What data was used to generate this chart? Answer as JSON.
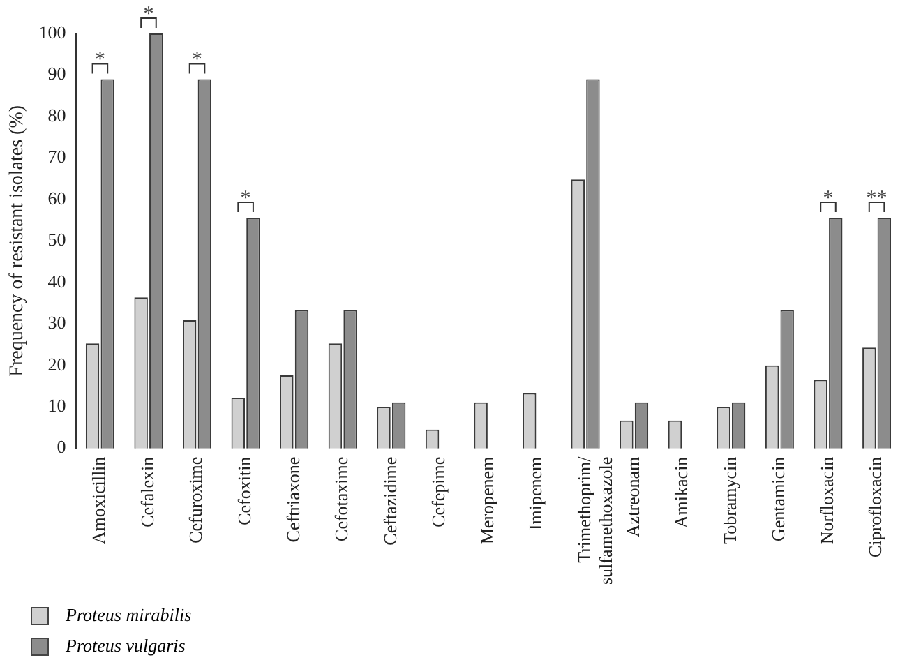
{
  "chart_data": {
    "type": "bar",
    "ylabel": "Frequency of resistant isolates (%)",
    "categories": [
      "Amoxicillin",
      "Cefalexin",
      "Cefuroxime",
      "Cefoxitin",
      "Ceftriaxone",
      "Cefotaxime",
      "Ceftazidime",
      "Cefepime",
      "Meropenem",
      "Imipenem",
      "Trimethoprim/sulfamethoxazole",
      "Aztreonam",
      "Amikacin",
      "Tobramycin",
      "Gentamicin",
      "Norfloxacin",
      "Ciprofloxacin"
    ],
    "series": [
      {
        "name": "Proteus mirabilis",
        "color": "#d0d0d0",
        "values": [
          25.3,
          36.4,
          30.9,
          12.2,
          17.6,
          25.3,
          10,
          4.5,
          11.1,
          13.3,
          64.8,
          6.7,
          6.7,
          10,
          20,
          16.5,
          24.3
        ]
      },
      {
        "name": "Proteus vulgaris",
        "color": "#8c8c8c",
        "values": [
          89,
          100,
          89,
          55.6,
          33.3,
          33.3,
          11.1,
          null,
          null,
          null,
          89,
          11.1,
          null,
          11.1,
          33.3,
          55.6,
          55.6
        ]
      }
    ],
    "ylim": [
      0,
      100
    ],
    "yticks": [
      0,
      10,
      20,
      30,
      40,
      50,
      60,
      70,
      80,
      90,
      100
    ],
    "grid": false,
    "legend": "bottom left",
    "annotations": [
      {
        "text": "*",
        "x": "Amoxicillin",
        "y": 89
      },
      {
        "text": "*",
        "x": "Cefalexin",
        "y": 100
      },
      {
        "text": "*",
        "x": "Cefuroxime",
        "y": 89
      },
      {
        "text": "*",
        "x": "Cefoxitin",
        "y": 55.6
      },
      {
        "text": "*",
        "x": "Norfloxacin",
        "y": 55.6
      },
      {
        "text": "**",
        "x": "Ciprofloxacin",
        "y": 55.6
      }
    ]
  }
}
